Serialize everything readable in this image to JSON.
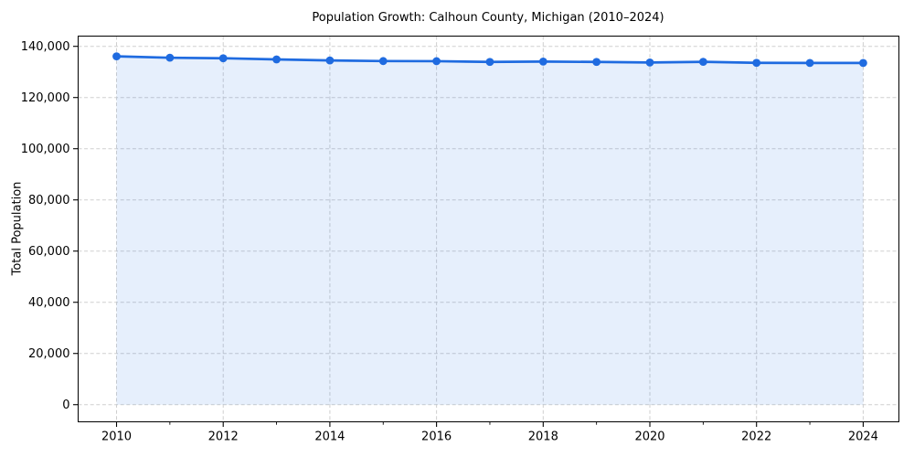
{
  "figure": {
    "title": "Population Growth: Calhoun County, Michigan (2010–2024)",
    "y_axis_label": "Total Population"
  },
  "chart_data": {
    "type": "area",
    "title": "Population Growth: Calhoun County, Michigan (2010–2024)",
    "xlabel": "",
    "ylabel": "Total Population",
    "x": [
      2010,
      2011,
      2012,
      2013,
      2014,
      2015,
      2016,
      2017,
      2018,
      2019,
      2020,
      2021,
      2022,
      2023,
      2024
    ],
    "series": [
      {
        "name": "Total Population",
        "values": [
          136100,
          135550,
          135350,
          134900,
          134500,
          134250,
          134200,
          133900,
          134050,
          133900,
          133700,
          133950,
          133550,
          133500,
          133500
        ]
      }
    ],
    "xticks": {
      "major": [
        2010,
        2012,
        2014,
        2016,
        2018,
        2020,
        2022,
        2024
      ],
      "minor": [
        2011,
        2013,
        2015,
        2017,
        2019,
        2021,
        2023
      ],
      "labels": [
        "2010",
        "2012",
        "2014",
        "2016",
        "2018",
        "2020",
        "2022",
        "2024"
      ]
    },
    "yticks": {
      "values": [
        0,
        20000,
        40000,
        60000,
        80000,
        100000,
        120000,
        140000
      ],
      "labels": [
        "0",
        "20,000",
        "40,000",
        "60,000",
        "80,000",
        "100,000",
        "120,000",
        "140,000"
      ]
    },
    "xlim": [
      2009.28,
      2024.67
    ],
    "ylim": [
      -6700,
      144000
    ],
    "fill_baseline": 0,
    "grid": true,
    "grid_style": "dashed",
    "legend": false,
    "colors": {
      "line": "#1f6be0",
      "marker": "#1f6be0",
      "fill_alpha": 0.11,
      "grid": "#cfcfcf",
      "spine": "#000000",
      "text": "#000000"
    }
  }
}
